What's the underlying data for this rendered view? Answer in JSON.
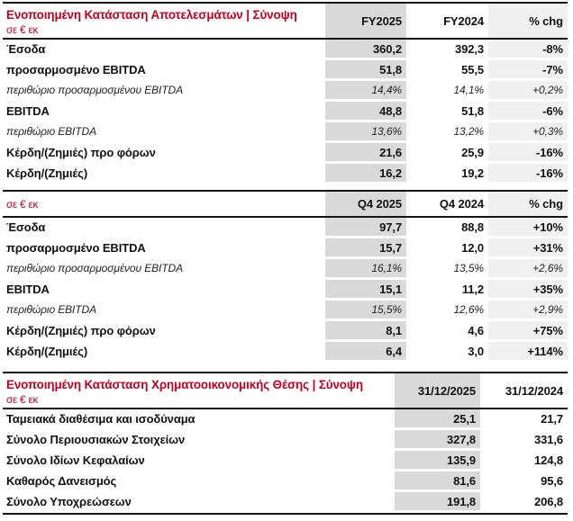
{
  "colors": {
    "accent_red": "#c00020",
    "shade_primary_col": "#d9d9d9",
    "shade_chg_col": "#f0f0f0",
    "rule_black": "#151515"
  },
  "sections": [
    {
      "title": "Ενοποιημένη Κατάσταση Αποτελεσμάτων | Σύνοψη",
      "unit_label": "σε € εκ",
      "columns": [
        "FY2025",
        "FY2024",
        "% chg"
      ],
      "rows": [
        {
          "label": "Έσοδα",
          "style": "bold",
          "values": [
            "360,2",
            "392,3",
            "-8%"
          ]
        },
        {
          "label": "προσαρμοσμένο EBITDA",
          "style": "bold",
          "values": [
            "51,8",
            "55,5",
            "-7%"
          ]
        },
        {
          "label": "περιθώριο προσαρμοσμένου EBITDA",
          "style": "italic",
          "values": [
            "14,4%",
            "14,1%",
            "+0,2%"
          ]
        },
        {
          "label": "EBITDA",
          "style": "bold",
          "values": [
            "48,8",
            "51,8",
            "-6%"
          ]
        },
        {
          "label": "περιθώριο EBITDA",
          "style": "italic",
          "values": [
            "13,6%",
            "13,2%",
            "+0,3%"
          ]
        },
        {
          "label": "Κέρδη/(Ζημιές) προ φόρων",
          "style": "bold",
          "values": [
            "21,6",
            "25,9",
            "-16%"
          ]
        },
        {
          "label": "Κέρδη/(Ζημιές)",
          "style": "bold",
          "values": [
            "16,2",
            "19,2",
            "-16%"
          ]
        }
      ]
    },
    {
      "title": "",
      "unit_label": "σε € εκ",
      "columns": [
        "Q4 2025",
        "Q4 2024",
        "% chg"
      ],
      "rows": [
        {
          "label": "Έσοδα",
          "style": "bold",
          "values": [
            "97,7",
            "88,8",
            "+10%"
          ]
        },
        {
          "label": "προσαρμοσμένο EBITDA",
          "style": "bold",
          "values": [
            "15,7",
            "12,0",
            "+31%"
          ]
        },
        {
          "label": "περιθώριο προσαρμοσμένου EBITDA",
          "style": "italic",
          "values": [
            "16,1%",
            "13,5%",
            "+2,6%"
          ]
        },
        {
          "label": "EBITDA",
          "style": "bold",
          "values": [
            "15,1",
            "11,2",
            "+35%"
          ]
        },
        {
          "label": "περιθώριο EBITDA",
          "style": "italic",
          "values": [
            "15,5%",
            "12,6%",
            "+2,9%"
          ]
        },
        {
          "label": "Κέρδη/(Ζημιές) προ φόρων",
          "style": "bold",
          "values": [
            "8,1",
            "4,6",
            "+75%"
          ]
        },
        {
          "label": "Κέρδη/(Ζημιές)",
          "style": "bold",
          "values": [
            "6,4",
            "3,0",
            "+114%"
          ]
        }
      ]
    },
    {
      "title": "Ενοποιημένη Κατάσταση Χρηματοοικονομικής Θέσης | Σύνοψη",
      "unit_label": "σε € εκ",
      "columns": [
        "31/12/2025",
        "31/12/2024"
      ],
      "rows": [
        {
          "label": "Ταμειακά διαθέσιμα και ισοδύναμα",
          "style": "bold",
          "values": [
            "25,1",
            "21,7"
          ]
        },
        {
          "label": "Σύνολο Περιουσιακών Στοιχείων",
          "style": "bold",
          "values": [
            "327,8",
            "331,6"
          ]
        },
        {
          "label": "Σύνολο Ιδίων Κεφαλαίων",
          "style": "bold",
          "values": [
            "135,9",
            "124,8"
          ]
        },
        {
          "label": "Καθαρός Δανεισμός",
          "style": "bold",
          "values": [
            "81,6",
            "95,6"
          ]
        },
        {
          "label": "Σύνολο Υποχρεώσεων",
          "style": "bold",
          "values": [
            "191,8",
            "206,8"
          ]
        }
      ]
    }
  ]
}
